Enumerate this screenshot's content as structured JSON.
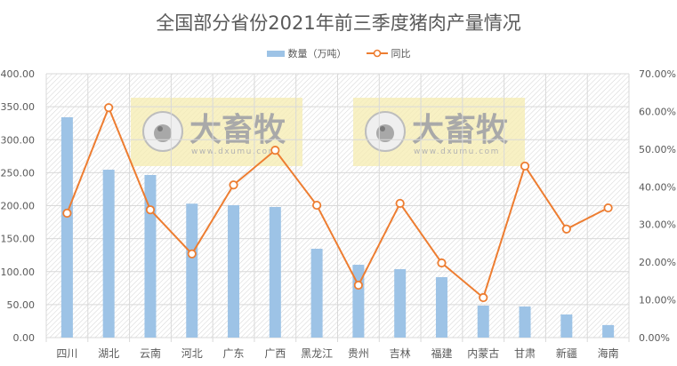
{
  "chart_data": {
    "type": "bar+line",
    "title": "全国部分省份2021年前三季度猪肉产量情况",
    "categories": [
      "四川",
      "湖北",
      "云南",
      "河北",
      "广东",
      "广西",
      "黑龙江",
      "贵州",
      "吉林",
      "福建",
      "内蒙古",
      "甘肃",
      "新疆",
      "海南"
    ],
    "series": [
      {
        "name": "数量（万吨）",
        "type": "bar",
        "axis": "left",
        "color": "#9dc3e6",
        "values": [
          334,
          254.5,
          246.5,
          203,
          200.7,
          198,
          134.7,
          110.4,
          103.7,
          91.6,
          48.5,
          47.1,
          35,
          19
        ]
      },
      {
        "name": "同比",
        "type": "line",
        "axis": "right",
        "color": "#ed7d31",
        "values": [
          33.0,
          61.0,
          33.9,
          22.2,
          40.5,
          49.7,
          35.1,
          13.9,
          35.6,
          19.8,
          10.6,
          45.5,
          28.8,
          34.4
        ],
        "unit": "%"
      }
    ],
    "left_axis": {
      "range": [
        0,
        400
      ],
      "ticks": [
        "0.00",
        "50.00",
        "100.00",
        "150.00",
        "200.00",
        "250.00",
        "300.00",
        "350.00",
        "400.00"
      ]
    },
    "right_axis": {
      "range": [
        0,
        70
      ],
      "ticks": [
        "0.00%",
        "10.00%",
        "20.00%",
        "30.00%",
        "40.00%",
        "50.00%",
        "60.00%",
        "70.00%"
      ]
    },
    "grid": true,
    "legend_position": "top",
    "xlabel": "",
    "ylabel": ""
  },
  "title": "全国部分省份2021年前三季度猪肉产量情况",
  "legend": {
    "bar_label": "数量（万吨）",
    "line_label": "同比"
  },
  "watermark": {
    "brand": "大畜牧",
    "url": "www.dxumu.com"
  },
  "colors": {
    "bar": "#9dc3e6",
    "line": "#ed7d31",
    "grid": "#d9d9d9",
    "text": "#595959",
    "watermark_bg": "#f5ecb0"
  }
}
